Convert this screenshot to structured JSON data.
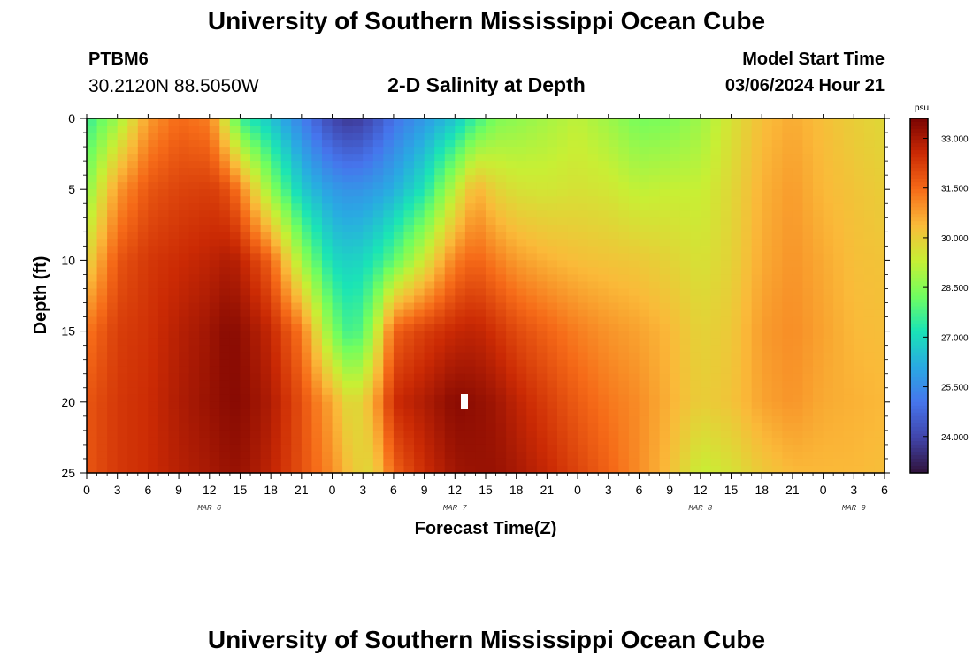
{
  "header": {
    "title": "University of Southern Mississippi Ocean Cube",
    "station_id": "PTBM6",
    "coordinates": "30.2120N  88.5050W",
    "subtitle": "2-D Salinity at Depth",
    "model_start_label": "Model Start Time",
    "model_start_value": "03/06/2024 Hour 21"
  },
  "footer": {
    "title": "University of Southern Mississippi Ocean Cube"
  },
  "chart_data": {
    "type": "heatmap",
    "title": "2-D Salinity at Depth",
    "xlabel": "Forecast Time(Z)",
    "ylabel": "Depth (ft)",
    "x_range_hours": [
      0,
      78
    ],
    "y_range_ft": [
      0,
      25
    ],
    "y_ticks": [
      0,
      5,
      10,
      15,
      20,
      25
    ],
    "x_tick_labels": [
      "0",
      "3",
      "6",
      "9",
      "12",
      "15",
      "18",
      "21",
      "0",
      "3",
      "6",
      "9",
      "12",
      "15",
      "18",
      "21",
      "0",
      "3",
      "6",
      "9",
      "12",
      "15",
      "18",
      "21",
      "0",
      "3",
      "6"
    ],
    "date_labels": [
      {
        "label": "MAR 6",
        "hour": 12
      },
      {
        "label": "MAR 7",
        "hour": 36
      },
      {
        "label": "MAR 8",
        "hour": 60
      },
      {
        "label": "MAR 9",
        "hour": 75
      }
    ],
    "colorbar": {
      "unit": "psu",
      "min": 22.9,
      "max": 33.6,
      "tick_labels": [
        "33.000",
        "31.500",
        "30.000",
        "28.500",
        "27.000",
        "25.500",
        "24.000"
      ],
      "tick_values": [
        33.0,
        31.5,
        30.0,
        28.5,
        27.0,
        25.5,
        24.0
      ]
    },
    "depths_ft": [
      0,
      5,
      10,
      15,
      20,
      25
    ],
    "columns": [
      {
        "hour": 0,
        "values": [
          27.5,
          28.5,
          29.8,
          31.3,
          31.8,
          31.8
        ]
      },
      {
        "hour": 3,
        "values": [
          28.8,
          30.8,
          31.8,
          32.2,
          32.3,
          32.3
        ]
      },
      {
        "hour": 6,
        "values": [
          30.8,
          31.8,
          32.3,
          32.4,
          32.5,
          32.5
        ]
      },
      {
        "hour": 9,
        "values": [
          31.5,
          32.1,
          32.5,
          32.8,
          32.9,
          32.8
        ]
      },
      {
        "hour": 12,
        "values": [
          31.2,
          32.2,
          32.7,
          33.1,
          33.2,
          33.0
        ]
      },
      {
        "hour": 13,
        "values": [
          30.2,
          32.1,
          32.8,
          33.3,
          33.3,
          33.1
        ]
      },
      {
        "hour": 14,
        "values": [
          29.0,
          31.8,
          32.9,
          33.4,
          33.4,
          33.2
        ]
      },
      {
        "hour": 15,
        "values": [
          27.6,
          31.2,
          32.7,
          33.3,
          33.4,
          33.2
        ]
      },
      {
        "hour": 18,
        "values": [
          26.6,
          28.6,
          31.6,
          32.6,
          32.9,
          32.7
        ]
      },
      {
        "hour": 21,
        "values": [
          25.3,
          26.7,
          28.8,
          31.3,
          31.9,
          31.9
        ]
      },
      {
        "hour": 24,
        "values": [
          24.0,
          25.8,
          27.0,
          28.4,
          30.6,
          31.0
        ]
      },
      {
        "hour": 26,
        "values": [
          23.7,
          25.6,
          26.8,
          27.5,
          29.6,
          30.1
        ]
      },
      {
        "hour": 28,
        "values": [
          24.2,
          25.8,
          27.2,
          28.8,
          30.5,
          29.8
        ]
      },
      {
        "hour": 30,
        "values": [
          25.0,
          26.2,
          28.0,
          31.6,
          32.5,
          31.6
        ]
      },
      {
        "hour": 33,
        "values": [
          25.8,
          27.2,
          29.5,
          32.2,
          32.9,
          32.5
        ]
      },
      {
        "hour": 36,
        "values": [
          26.6,
          29.2,
          31.2,
          32.6,
          33.4,
          33.1
        ]
      },
      {
        "hour": 38,
        "values": [
          27.6,
          30.5,
          31.6,
          32.7,
          33.3,
          33.2
        ]
      },
      {
        "hour": 40,
        "values": [
          28.4,
          29.9,
          31.2,
          32.4,
          33.1,
          33.2
        ]
      },
      {
        "hour": 42,
        "values": [
          28.6,
          29.6,
          30.8,
          32.0,
          32.7,
          33.0
        ]
      },
      {
        "hour": 45,
        "values": [
          28.9,
          29.5,
          30.5,
          31.6,
          32.2,
          32.6
        ]
      },
      {
        "hour": 48,
        "values": [
          29.2,
          29.6,
          30.3,
          31.2,
          31.7,
          32.1
        ]
      },
      {
        "hour": 51,
        "values": [
          28.8,
          29.5,
          30.2,
          30.9,
          31.3,
          31.6
        ]
      },
      {
        "hour": 54,
        "values": [
          28.3,
          29.2,
          30.1,
          30.7,
          31.0,
          31.0
        ]
      },
      {
        "hour": 57,
        "values": [
          28.4,
          29.3,
          29.9,
          30.4,
          30.5,
          30.3
        ]
      },
      {
        "hour": 60,
        "values": [
          28.8,
          29.3,
          29.6,
          29.9,
          30.0,
          29.3
        ]
      },
      {
        "hour": 63,
        "values": [
          29.6,
          29.8,
          29.9,
          30.1,
          30.2,
          29.6
        ]
      },
      {
        "hour": 66,
        "values": [
          30.3,
          30.5,
          30.6,
          30.8,
          30.7,
          30.1
        ]
      },
      {
        "hour": 69,
        "values": [
          30.6,
          30.8,
          30.9,
          31.0,
          30.9,
          30.4
        ]
      },
      {
        "hour": 72,
        "values": [
          30.3,
          30.4,
          30.6,
          30.7,
          30.6,
          30.4
        ]
      },
      {
        "hour": 75,
        "values": [
          30.0,
          30.2,
          30.3,
          30.4,
          30.5,
          30.4
        ]
      },
      {
        "hour": 78,
        "values": [
          29.8,
          30.0,
          30.2,
          30.3,
          30.4,
          30.3
        ]
      }
    ]
  }
}
